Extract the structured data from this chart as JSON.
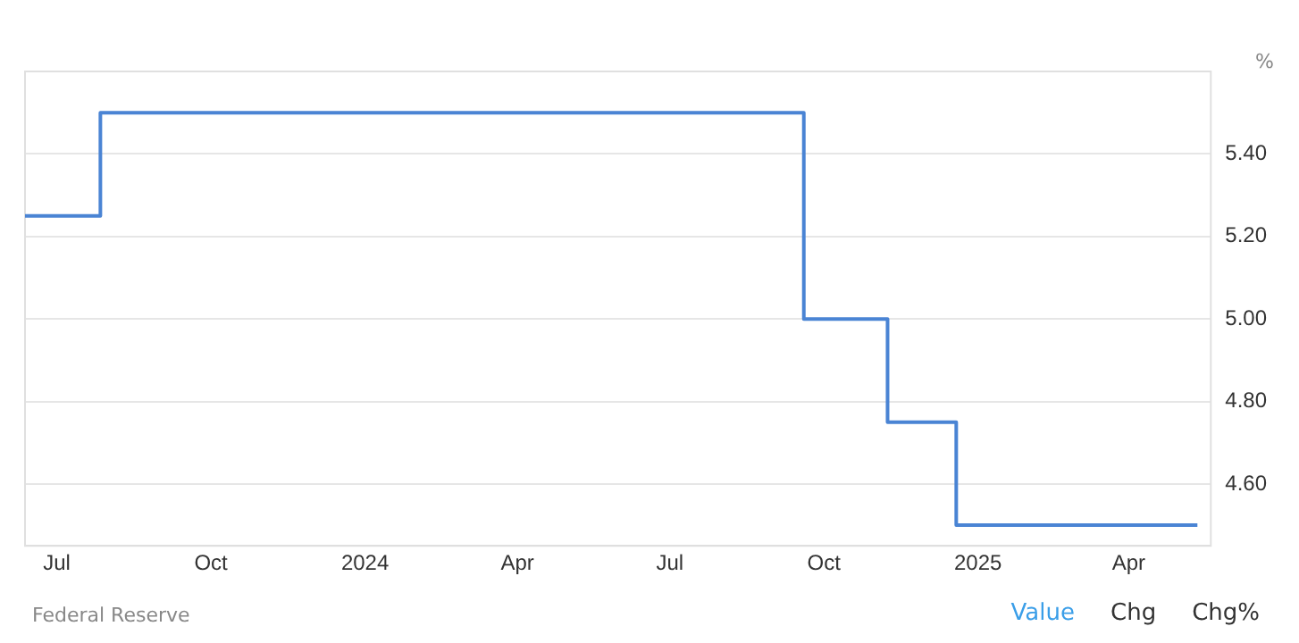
{
  "chart_data": {
    "type": "step",
    "ylabel": "%",
    "x": [
      "2023-06-12",
      "2023-07-27",
      "2024-09-19",
      "2024-11-08",
      "2024-12-19",
      "2025-05-12"
    ],
    "series": [
      {
        "color": "#4a84d4",
        "values": [
          5.25,
          5.5,
          5.0,
          4.75,
          4.5,
          4.5
        ]
      }
    ],
    "xlim": [
      "2023-06-12",
      "2025-05-20"
    ],
    "xticks": [
      {
        "value": "2023-07-01",
        "label": "Jul"
      },
      {
        "value": "2023-10-01",
        "label": "Oct"
      },
      {
        "value": "2024-01-01",
        "label": "2024"
      },
      {
        "value": "2024-04-01",
        "label": "Apr"
      },
      {
        "value": "2024-07-01",
        "label": "Jul"
      },
      {
        "value": "2024-10-01",
        "label": "Oct"
      },
      {
        "value": "2025-01-01",
        "label": "2025"
      },
      {
        "value": "2025-04-01",
        "label": "Apr"
      }
    ],
    "ylim": [
      4.45,
      5.6
    ],
    "yticks": [
      {
        "value": 4.6,
        "label": "4.60"
      },
      {
        "value": 4.8,
        "label": "4.80"
      },
      {
        "value": 5.0,
        "label": "5.00"
      },
      {
        "value": 5.2,
        "label": "5.20"
      },
      {
        "value": 5.4,
        "label": "5.40"
      }
    ],
    "grid": "y",
    "legend": false,
    "marker": "none",
    "line_style": "solid",
    "annotations": [
      "Federal Reserve",
      "Value",
      "Chg",
      "Chg%"
    ]
  }
}
